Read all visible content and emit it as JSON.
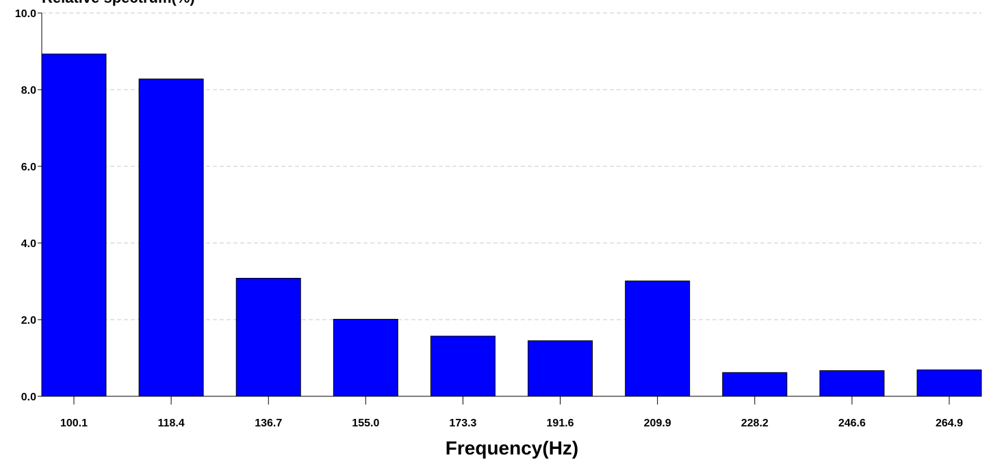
{
  "chart_data": {
    "type": "bar",
    "ylabel": "Relative spectrum(%)",
    "xlabel": "Frequency(Hz)",
    "categories": [
      "100.1",
      "118.4",
      "136.7",
      "155.0",
      "173.3",
      "191.6",
      "209.9",
      "228.2",
      "246.6",
      "264.9"
    ],
    "values": [
      8.93,
      8.28,
      3.08,
      2.01,
      1.57,
      1.45,
      3.01,
      0.62,
      0.67,
      0.69
    ],
    "ylim": [
      0,
      10
    ],
    "yticks": [
      "0.0",
      "2.0",
      "4.0",
      "6.0",
      "8.0",
      "10.0"
    ],
    "grid": true,
    "legend": "none",
    "colors": {
      "bar_fill": "#0000ff",
      "bar_stroke": "#000000",
      "grid": "#c8c8c8",
      "axis": "#000000"
    }
  }
}
